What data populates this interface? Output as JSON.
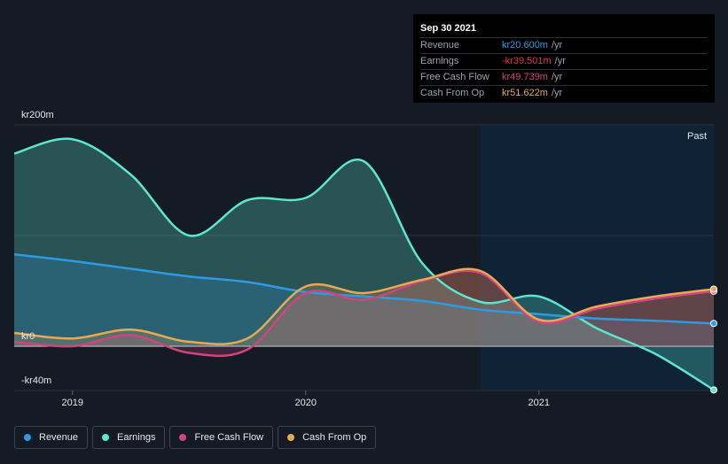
{
  "tooltip": {
    "date": "Sep 30 2021",
    "rows": [
      {
        "label": "Revenue",
        "value": "kr20.600m",
        "unit": "/yr",
        "color": "#2d9be3"
      },
      {
        "label": "Earnings",
        "value": "-kr39.501m",
        "unit": "/yr",
        "color": "#e6373f"
      },
      {
        "label": "Free Cash Flow",
        "value": "kr49.739m",
        "unit": "/yr",
        "color": "#d0457e"
      },
      {
        "label": "Cash From Op",
        "value": "kr51.622m",
        "unit": "/yr",
        "color": "#e8a954"
      }
    ]
  },
  "past_label": "Past",
  "legend": [
    {
      "label": "Revenue",
      "color": "#2d9be3"
    },
    {
      "label": "Earnings",
      "color": "#5ce6d0"
    },
    {
      "label": "Free Cash Flow",
      "color": "#d0457e"
    },
    {
      "label": "Cash From Op",
      "color": "#e8a954"
    }
  ],
  "chart_data": {
    "type": "area",
    "ylim": [
      -40,
      200
    ],
    "y_tick_labels": [
      "kr200m",
      "kr0",
      "-kr40m"
    ],
    "y_tick_values": [
      200,
      0,
      -40
    ],
    "x_ticks": [
      {
        "label": "2019",
        "x": 2019.0
      },
      {
        "label": "2020",
        "x": 2020.0
      },
      {
        "label": "2021",
        "x": 2021.0
      }
    ],
    "xlim": [
      2018.75,
      2021.75
    ],
    "past_start": 2020.75,
    "series": [
      {
        "name": "Revenue",
        "color": "#2d9be3",
        "x": [
          2018.75,
          2019.0,
          2019.25,
          2019.5,
          2019.75,
          2020.0,
          2020.25,
          2020.5,
          2020.75,
          2021.0,
          2021.25,
          2021.5,
          2021.75
        ],
        "y": [
          83,
          77,
          70,
          63,
          58,
          49,
          45,
          41,
          33,
          29,
          25,
          23,
          20.6
        ]
      },
      {
        "name": "Earnings",
        "color": "#5ce6d0",
        "x": [
          2018.75,
          2019.0,
          2019.25,
          2019.5,
          2019.75,
          2020.0,
          2020.25,
          2020.5,
          2020.75,
          2021.0,
          2021.25,
          2021.5,
          2021.75
        ],
        "y": [
          174,
          187,
          155,
          100,
          132,
          134,
          167,
          75,
          40,
          45,
          16,
          -7,
          -39.5
        ]
      },
      {
        "name": "Free Cash Flow",
        "color": "#d0457e",
        "x": [
          2018.75,
          2019.0,
          2019.25,
          2019.5,
          2019.75,
          2020.0,
          2020.25,
          2020.5,
          2020.75,
          2021.0,
          2021.25,
          2021.5,
          2021.75
        ],
        "y": [
          4,
          0,
          10,
          -6,
          -3,
          48,
          42,
          59,
          66,
          22,
          34,
          43,
          49.7
        ]
      },
      {
        "name": "Cash From Op",
        "color": "#e8a954",
        "x": [
          2018.75,
          2019.0,
          2019.25,
          2019.5,
          2019.75,
          2020.0,
          2020.25,
          2020.5,
          2020.75,
          2021.0,
          2021.25,
          2021.5,
          2021.75
        ],
        "y": [
          12,
          7,
          15,
          4,
          7,
          54,
          48,
          60,
          68,
          24,
          36,
          45,
          51.6
        ]
      }
    ]
  }
}
